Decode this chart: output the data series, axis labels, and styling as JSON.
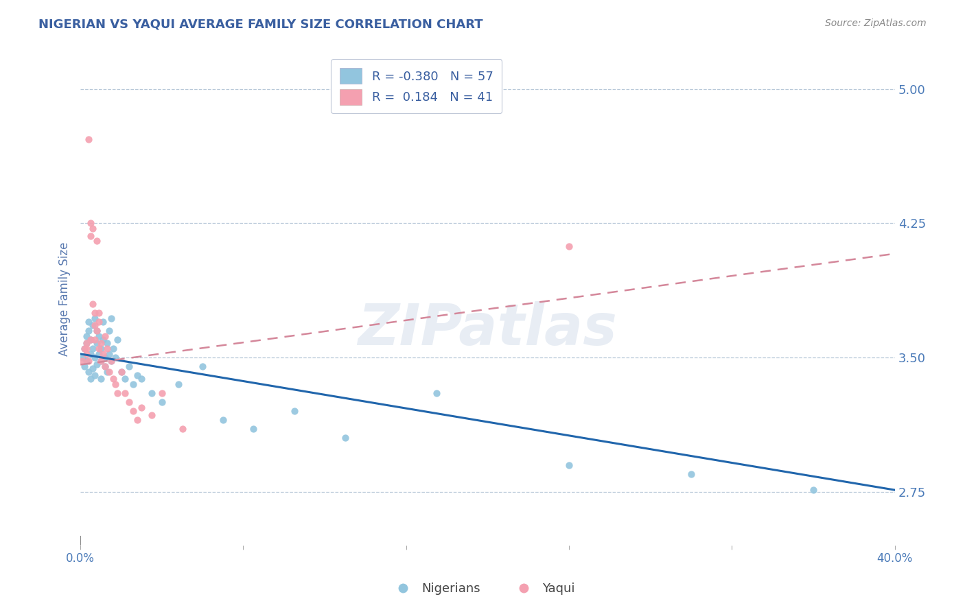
{
  "title": "NIGERIAN VS YAQUI AVERAGE FAMILY SIZE CORRELATION CHART",
  "source": "Source: ZipAtlas.com",
  "ylabel": "Average Family Size",
  "xlim": [
    0.0,
    0.4
  ],
  "ylim": [
    2.45,
    5.2
  ],
  "yticks": [
    2.75,
    3.5,
    4.25,
    5.0
  ],
  "nigerian_color": "#92c5de",
  "yaqui_color": "#f4a0b0",
  "nigerian_line_color": "#2166ac",
  "yaqui_line_color": "#d4879a",
  "legend_R_color": "#3a5fa0",
  "background_color": "#ffffff",
  "grid_color": "#b8c8d8",
  "title_color": "#3a5fa0",
  "axis_label_color": "#5a7ab0",
  "tick_label_color": "#4a7ab8",
  "legend_label_nigerian": "Nigerians",
  "legend_label_yaqui": "Yaqui",
  "R_nigerian": -0.38,
  "N_nigerian": 57,
  "R_yaqui": 0.184,
  "N_yaqui": 41,
  "nig_line_x0": 0.0,
  "nig_line_y0": 3.52,
  "nig_line_x1": 0.4,
  "nig_line_y1": 2.76,
  "yaq_line_x0": 0.0,
  "yaq_line_y0": 3.46,
  "yaq_line_x1": 0.4,
  "yaq_line_y1": 4.08,
  "nigerian_x": [
    0.001,
    0.002,
    0.002,
    0.003,
    0.003,
    0.003,
    0.004,
    0.004,
    0.004,
    0.005,
    0.005,
    0.005,
    0.006,
    0.006,
    0.006,
    0.007,
    0.007,
    0.007,
    0.008,
    0.008,
    0.008,
    0.009,
    0.009,
    0.01,
    0.01,
    0.01,
    0.011,
    0.011,
    0.012,
    0.012,
    0.013,
    0.013,
    0.014,
    0.014,
    0.015,
    0.016,
    0.017,
    0.018,
    0.02,
    0.022,
    0.024,
    0.026,
    0.028,
    0.03,
    0.035,
    0.04,
    0.048,
    0.06,
    0.07,
    0.085,
    0.105,
    0.13,
    0.175,
    0.24,
    0.3,
    0.36,
    0.015
  ],
  "nigerian_y": [
    3.5,
    3.55,
    3.45,
    3.58,
    3.62,
    3.48,
    3.7,
    3.65,
    3.42,
    3.52,
    3.6,
    3.38,
    3.55,
    3.68,
    3.44,
    3.5,
    3.72,
    3.4,
    3.58,
    3.65,
    3.46,
    3.52,
    3.62,
    3.48,
    3.55,
    3.38,
    3.6,
    3.7,
    3.5,
    3.45,
    3.58,
    3.42,
    3.52,
    3.65,
    3.48,
    3.55,
    3.5,
    3.6,
    3.42,
    3.38,
    3.45,
    3.35,
    3.4,
    3.38,
    3.3,
    3.25,
    3.35,
    3.45,
    3.15,
    3.1,
    3.2,
    3.05,
    3.3,
    2.9,
    2.85,
    2.76,
    3.72
  ],
  "yaqui_x": [
    0.001,
    0.002,
    0.003,
    0.003,
    0.004,
    0.004,
    0.005,
    0.005,
    0.006,
    0.006,
    0.007,
    0.007,
    0.008,
    0.008,
    0.009,
    0.009,
    0.01,
    0.01,
    0.011,
    0.012,
    0.012,
    0.013,
    0.014,
    0.015,
    0.016,
    0.017,
    0.018,
    0.02,
    0.022,
    0.024,
    0.026,
    0.028,
    0.03,
    0.035,
    0.04,
    0.05,
    0.003,
    0.005,
    0.007,
    0.009,
    0.24
  ],
  "yaqui_y": [
    3.48,
    3.55,
    3.52,
    3.58,
    3.48,
    4.72,
    4.25,
    4.18,
    4.22,
    3.8,
    3.6,
    3.75,
    3.65,
    4.15,
    3.55,
    3.7,
    3.58,
    3.48,
    3.52,
    3.45,
    3.62,
    3.55,
    3.42,
    3.48,
    3.38,
    3.35,
    3.3,
    3.42,
    3.3,
    3.25,
    3.2,
    3.15,
    3.22,
    3.18,
    3.3,
    3.1,
    3.55,
    3.6,
    3.68,
    3.75,
    4.12
  ]
}
